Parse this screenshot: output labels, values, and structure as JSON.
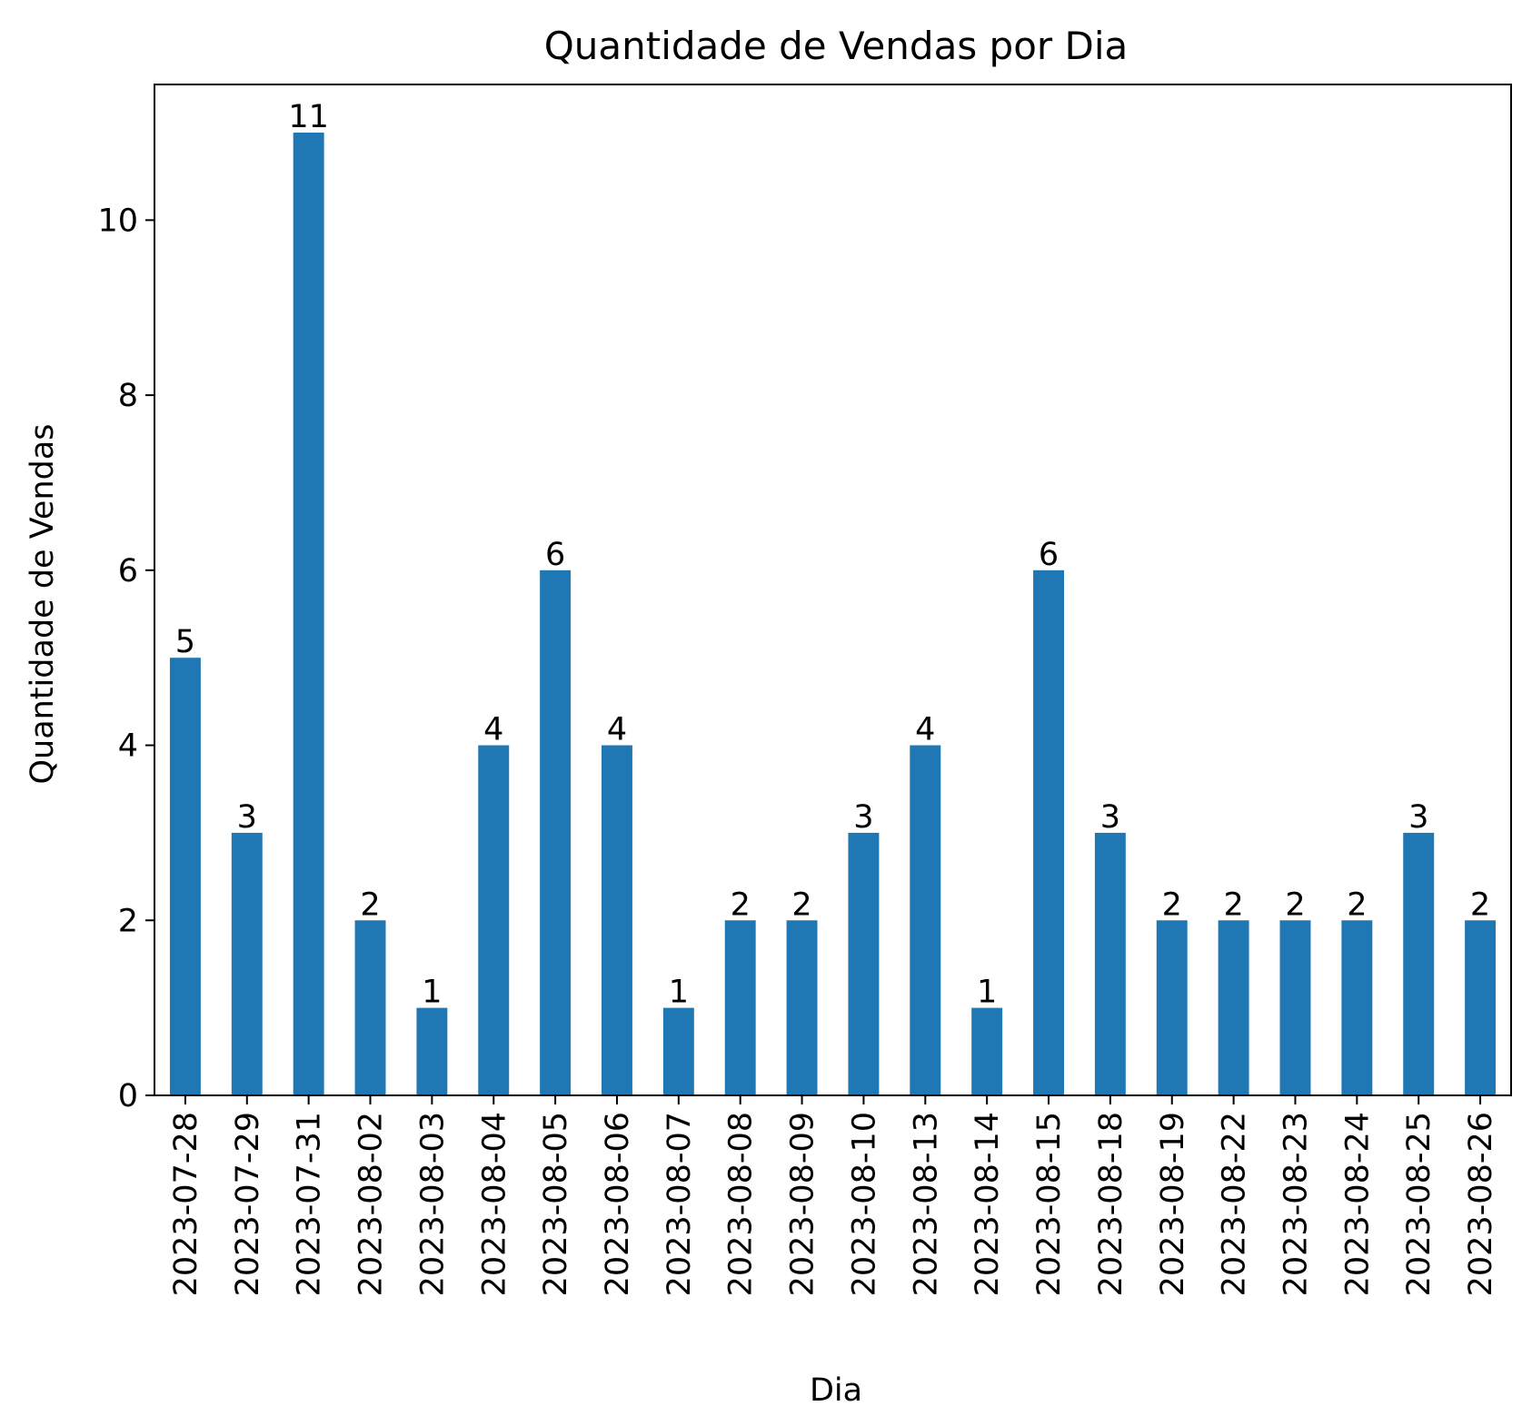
{
  "chart_data": {
    "type": "bar",
    "title": "Quantidade de Vendas por Dia",
    "xlabel": "Dia",
    "ylabel": "Quantidade de Vendas",
    "categories": [
      "2023-07-28",
      "2023-07-29",
      "2023-07-31",
      "2023-08-02",
      "2023-08-03",
      "2023-08-04",
      "2023-08-05",
      "2023-08-06",
      "2023-08-07",
      "2023-08-08",
      "2023-08-09",
      "2023-08-10",
      "2023-08-13",
      "2023-08-14",
      "2023-08-15",
      "2023-08-18",
      "2023-08-19",
      "2023-08-22",
      "2023-08-23",
      "2023-08-24",
      "2023-08-25",
      "2023-08-26"
    ],
    "values": [
      5,
      3,
      11,
      2,
      1,
      4,
      6,
      4,
      1,
      2,
      2,
      3,
      4,
      1,
      6,
      3,
      2,
      2,
      2,
      2,
      3,
      2
    ],
    "ylim": [
      0,
      11.55
    ],
    "yticks": [
      0,
      2,
      4,
      6,
      8,
      10
    ],
    "grid": false,
    "bar_color": "#1f77b4"
  }
}
